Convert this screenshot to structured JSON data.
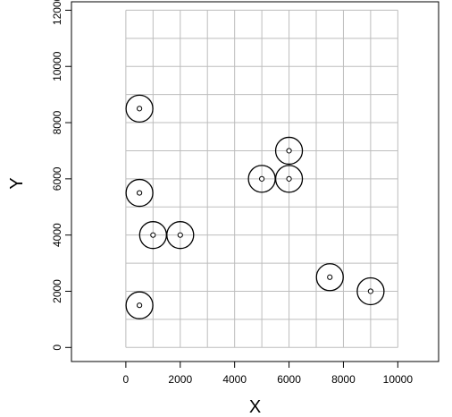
{
  "chart_data": {
    "type": "scatter",
    "title": "",
    "xlabel": "X",
    "ylabel": "Y",
    "xlim": [
      -2000,
      11500
    ],
    "ylim": [
      -500,
      12300
    ],
    "grid": true,
    "grid_range_x": [
      0,
      10000
    ],
    "grid_range_y": [
      0,
      12000
    ],
    "grid_step": 1000,
    "x_ticks": [
      "0",
      "2000",
      "4000",
      "6000",
      "8000",
      "10000"
    ],
    "x_tick_values": [
      0,
      2000,
      4000,
      6000,
      8000,
      10000
    ],
    "y_ticks": [
      "0",
      "2000",
      "4000",
      "6000",
      "8000",
      "10000",
      "12000"
    ],
    "y_tick_values": [
      0,
      2000,
      4000,
      6000,
      8000,
      10000,
      12000
    ],
    "points": [
      {
        "x": 500,
        "y": 8500
      },
      {
        "x": 500,
        "y": 5500
      },
      {
        "x": 1000,
        "y": 4000
      },
      {
        "x": 2000,
        "y": 4000
      },
      {
        "x": 500,
        "y": 1500
      },
      {
        "x": 5000,
        "y": 6000
      },
      {
        "x": 6000,
        "y": 6000
      },
      {
        "x": 6000,
        "y": 7000
      },
      {
        "x": 7500,
        "y": 2500
      },
      {
        "x": 9000,
        "y": 2000
      }
    ],
    "colors": {
      "grid": "#bdbdbd",
      "frame": "#000000",
      "marker": "#000000"
    }
  }
}
